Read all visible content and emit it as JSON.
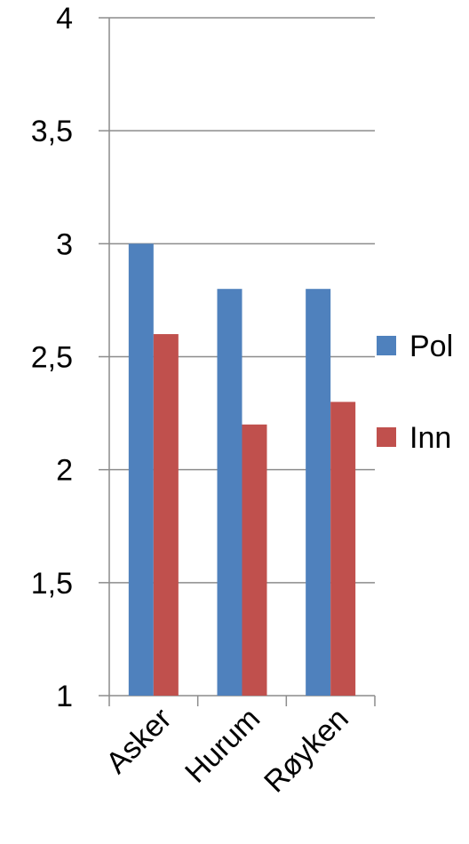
{
  "chart_data": {
    "type": "bar",
    "categories": [
      "Asker",
      "Hurum",
      "Røyken"
    ],
    "series": [
      {
        "name": "Pol",
        "values": [
          3.0,
          2.8,
          2.8
        ],
        "color": "#4F81BD"
      },
      {
        "name": "Inn",
        "values": [
          2.6,
          2.2,
          2.3
        ],
        "color": "#C0504D"
      }
    ],
    "yticks": [
      "1",
      "1,5",
      "2",
      "2,5",
      "3",
      "3,5",
      "4"
    ],
    "ylim": [
      1,
      4
    ],
    "grid": true,
    "legend_position": "right"
  }
}
